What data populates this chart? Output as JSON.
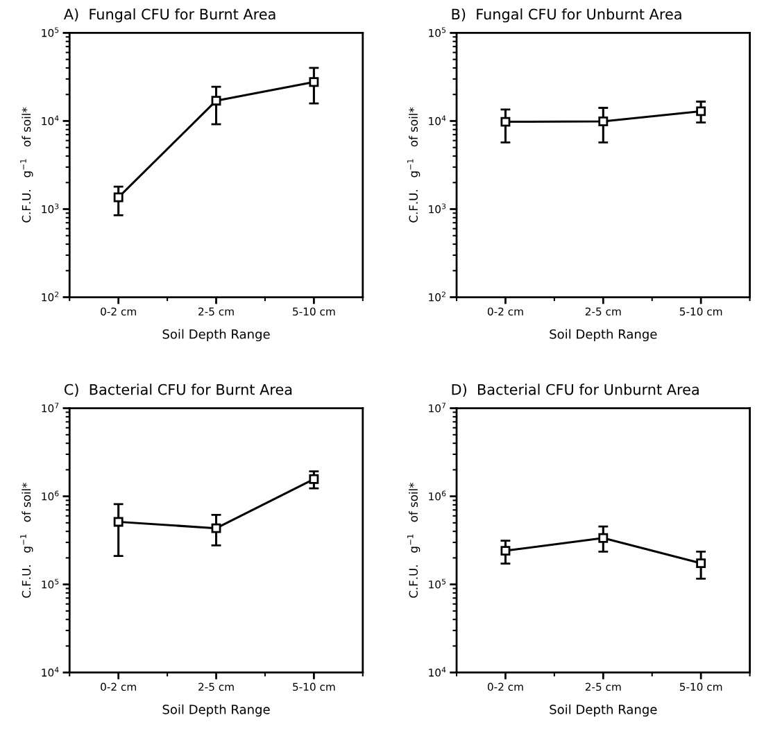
{
  "chart_data": [
    {
      "type": "line",
      "title": "A)  Fungal CFU for Burnt Area",
      "xlabel": "Soil Depth Range",
      "ylabel": "C.F.U.   g$^{−1}$   of soil*",
      "categories": [
        "0-2 cm",
        "2-5 cm",
        "5-10 cm"
      ],
      "series": [
        {
          "color": "#000000",
          "values": [
            1360,
            17000,
            27700
          ],
          "errors": [
            [
              850,
              1800
            ],
            [
              9200,
              24500
            ],
            [
              15800,
              40000
            ]
          ]
        }
      ],
      "log": true,
      "ylim": [
        100,
        100000
      ],
      "yticks": [
        {
          "value": 100,
          "label": "10$^{2}$"
        },
        {
          "value": 1000,
          "label": "10$^{3}$"
        },
        {
          "value": 10000,
          "label": "10$^{4}$"
        },
        {
          "value": 100000,
          "label": "10$^{5}$"
        }
      ],
      "marker": "square",
      "line_style": "solid",
      "grid": false
    },
    {
      "type": "line",
      "title": "B)  Fungal CFU for Unburnt Area",
      "xlabel": "Soil Depth Range",
      "ylabel": "C.F.U.   g$^{−1}$   of soil*",
      "categories": [
        "0-2 cm",
        "2-5 cm",
        "5-10 cm"
      ],
      "series": [
        {
          "color": "#000000",
          "values": [
            9800,
            9900,
            12900
          ],
          "errors": [
            [
              5700,
              13500
            ],
            [
              5700,
              14100
            ],
            [
              9600,
              16600
            ]
          ]
        }
      ],
      "log": true,
      "ylim": [
        100,
        100000
      ],
      "yticks": [
        {
          "value": 100,
          "label": "10$^{2}$"
        },
        {
          "value": 1000,
          "label": "10$^{3}$"
        },
        {
          "value": 10000,
          "label": "10$^{4}$"
        },
        {
          "value": 100000,
          "label": "10$^{5}$"
        }
      ],
      "marker": "square",
      "line_style": "solid",
      "grid": false
    },
    {
      "type": "line",
      "title": "C)  Bacterial CFU for Burnt Area",
      "xlabel": "Soil Depth Range",
      "ylabel": "C.F.U.   g$^{−1}$   of soil*",
      "categories": [
        "0-2 cm",
        "2-5 cm",
        "5-10 cm"
      ],
      "series": [
        {
          "color": "#000000",
          "values": [
            513000,
            434000,
            1570000
          ],
          "errors": [
            [
              210000,
              816000
            ],
            [
              277000,
              616000
            ],
            [
              1230000,
              1920000
            ]
          ]
        }
      ],
      "log": true,
      "ylim": [
        10000,
        10000000
      ],
      "yticks": [
        {
          "value": 10000,
          "label": "10$^{4}$"
        },
        {
          "value": 100000,
          "label": "10$^{5}$"
        },
        {
          "value": 1000000,
          "label": "10$^{6}$"
        },
        {
          "value": 10000000,
          "label": "10$^{7}$"
        }
      ],
      "marker": "square",
      "line_style": "solid",
      "grid": false
    },
    {
      "type": "line",
      "title": "D)  Bacterial CFU for Unburnt Area",
      "xlabel": "Soil Depth Range",
      "ylabel": "C.F.U.   g$^{−1}$   of soil*",
      "categories": [
        "0-2 cm",
        "2-5 cm",
        "5-10 cm"
      ],
      "series": [
        {
          "color": "#000000",
          "values": [
            241000,
            336000,
            174000
          ],
          "errors": [
            [
              172000,
              313000
            ],
            [
              236000,
              454000
            ],
            [
              116000,
              236000
            ]
          ]
        }
      ],
      "log": true,
      "ylim": [
        10000,
        10000000
      ],
      "yticks": [
        {
          "value": 10000,
          "label": "10$^{4}$"
        },
        {
          "value": 100000,
          "label": "10$^{5}$"
        },
        {
          "value": 1000000,
          "label": "10$^{6}$"
        },
        {
          "value": 10000000,
          "label": "10$^{7}$"
        }
      ],
      "marker": "square",
      "line_style": "solid",
      "grid": false
    }
  ]
}
